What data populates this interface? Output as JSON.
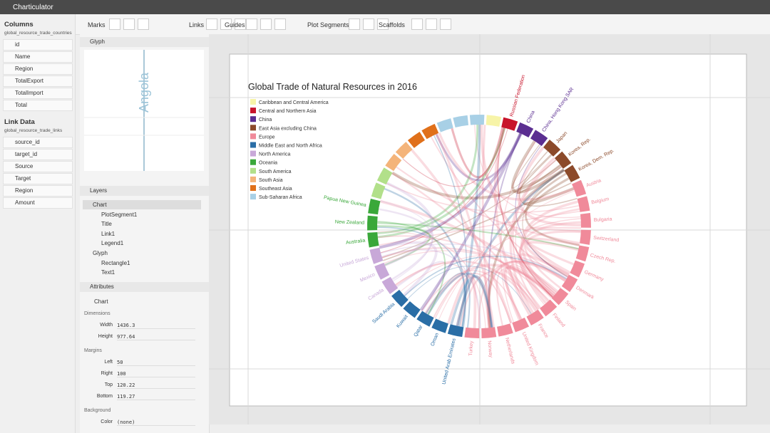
{
  "app": {
    "title": "Charticulator"
  },
  "toolbar": {
    "groups": [
      "Marks",
      "Links",
      "Guides",
      "Plot Segments",
      "Scaffolds"
    ]
  },
  "columns": {
    "title": "Columns",
    "dataset": "global_resource_trade_countries",
    "fields": [
      "id",
      "Name",
      "Region",
      "TotalExport",
      "TotalImport",
      "Total"
    ]
  },
  "link_data": {
    "title": "Link Data",
    "dataset": "global_resource_trade_links",
    "fields": [
      "source_id",
      "target_id",
      "Source",
      "Target",
      "Region",
      "Amount"
    ]
  },
  "glyph": {
    "title": "Glyph",
    "text": "Angola"
  },
  "layers": {
    "title": "Layers",
    "items": [
      "Chart",
      "PlotSegment1",
      "Title",
      "Link1",
      "Legend1",
      "Glyph",
      "Rectangle1",
      "Text1"
    ]
  },
  "attributes": {
    "title": "Attributes",
    "object": "Chart",
    "sections": [
      {
        "title": "Dimensions",
        "rows": [
          [
            "Width",
            "1436.3"
          ],
          [
            "Height",
            "977.64"
          ]
        ]
      },
      {
        "title": "Margins",
        "rows": [
          [
            "Left",
            "50"
          ],
          [
            "Right",
            "100"
          ],
          [
            "Top",
            "120.22"
          ],
          [
            "Bottom",
            "119.27"
          ]
        ]
      },
      {
        "title": "Background",
        "rows": [
          [
            "Color",
            "(none)"
          ]
        ]
      }
    ]
  },
  "chart": {
    "title": "Global Trade of Natural Resources in 2016",
    "legend": [
      {
        "label": "Caribbean and Central America",
        "color": "#f7f4a8"
      },
      {
        "label": "Central and Northern Asia",
        "color": "#c8142b"
      },
      {
        "label": "China",
        "color": "#5b2e91"
      },
      {
        "label": "East Asia excluding China",
        "color": "#8c4a2a"
      },
      {
        "label": "Europe",
        "color": "#f08a9a"
      },
      {
        "label": "Middle East and North Africa",
        "color": "#2a6ea6"
      },
      {
        "label": "North America",
        "color": "#c8a8d8"
      },
      {
        "label": "Oceania",
        "color": "#3aa83a"
      },
      {
        "label": "South America",
        "color": "#b2e08a"
      },
      {
        "label": "South Asia",
        "color": "#f4b47a"
      },
      {
        "label": "Southeast Asia",
        "color": "#e0701a"
      },
      {
        "label": "Sub-Saharan Africa",
        "color": "#a8d0e6"
      }
    ],
    "labels": [
      {
        "text": "Russian Federation",
        "color": "#c8142b"
      },
      {
        "text": "China",
        "color": "#5b2e91"
      },
      {
        "text": "China, Hong Kong SAR",
        "color": "#5b2e91"
      },
      {
        "text": "Japan",
        "color": "#8c4a2a"
      },
      {
        "text": "Korea, Rep.",
        "color": "#8c4a2a"
      },
      {
        "text": "Korea, Dem. Rep.",
        "color": "#8c4a2a"
      },
      {
        "text": "Austria",
        "color": "#f08a9a"
      },
      {
        "text": "Belgium",
        "color": "#f08a9a"
      },
      {
        "text": "Bulgaria",
        "color": "#f08a9a"
      },
      {
        "text": "Switzerland",
        "color": "#f08a9a"
      },
      {
        "text": "Czech Rep.",
        "color": "#f08a9a"
      },
      {
        "text": "Germany",
        "color": "#f08a9a"
      },
      {
        "text": "Denmark",
        "color": "#f08a9a"
      },
      {
        "text": "Spain",
        "color": "#f08a9a"
      },
      {
        "text": "Finland",
        "color": "#f08a9a"
      },
      {
        "text": "France",
        "color": "#f08a9a"
      },
      {
        "text": "United Kingdom",
        "color": "#f08a9a"
      },
      {
        "text": "Netherlands",
        "color": "#f08a9a"
      },
      {
        "text": "Norway",
        "color": "#f08a9a"
      },
      {
        "text": "Turkey",
        "color": "#f08a9a"
      },
      {
        "text": "United Arab Emirates",
        "color": "#2a6ea6"
      },
      {
        "text": "Oman",
        "color": "#2a6ea6"
      },
      {
        "text": "Qatar",
        "color": "#2a6ea6"
      },
      {
        "text": "Kuwait",
        "color": "#2a6ea6"
      },
      {
        "text": "Saudi Arabia",
        "color": "#2a6ea6"
      },
      {
        "text": "Canada",
        "color": "#c8a8d8"
      },
      {
        "text": "Mexico",
        "color": "#c8a8d8"
      },
      {
        "text": "United States",
        "color": "#c8a8d8"
      },
      {
        "text": "Australia",
        "color": "#3aa83a"
      },
      {
        "text": "New Zealand",
        "color": "#3aa83a"
      },
      {
        "text": "Papua New Guinea",
        "color": "#3aa83a"
      }
    ]
  }
}
